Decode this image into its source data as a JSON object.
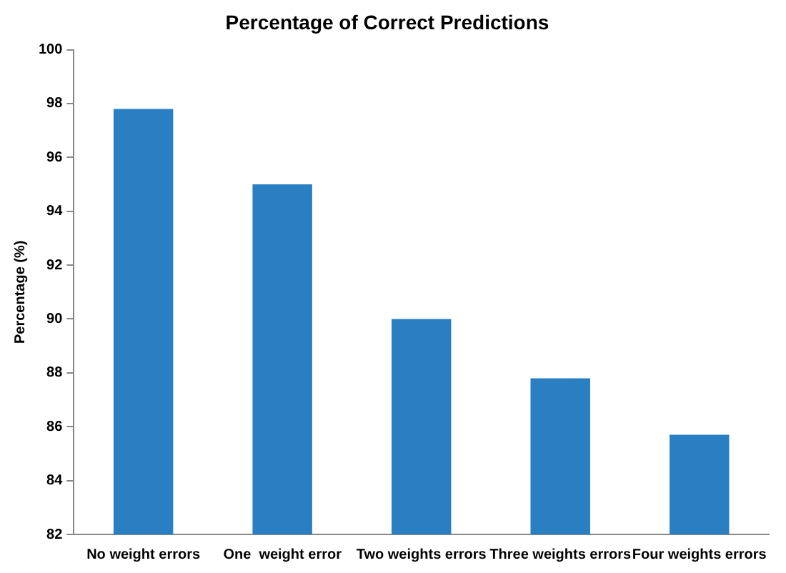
{
  "chart_data": {
    "type": "bar",
    "title": "Percentage of Correct Predictions",
    "ylabel": "Percentage (%)",
    "categories": [
      "No weight errors",
      "One  weight error",
      "Two weights errors",
      "Three weights errors",
      "Four weights errors"
    ],
    "values": [
      97.8,
      95.0,
      90.0,
      87.8,
      85.7
    ],
    "color": "#2a7fc2",
    "ylim": [
      82,
      100
    ],
    "yticks": [
      82,
      84,
      86,
      88,
      90,
      92,
      94,
      96,
      98,
      100
    ],
    "grid": false,
    "legend": false
  }
}
